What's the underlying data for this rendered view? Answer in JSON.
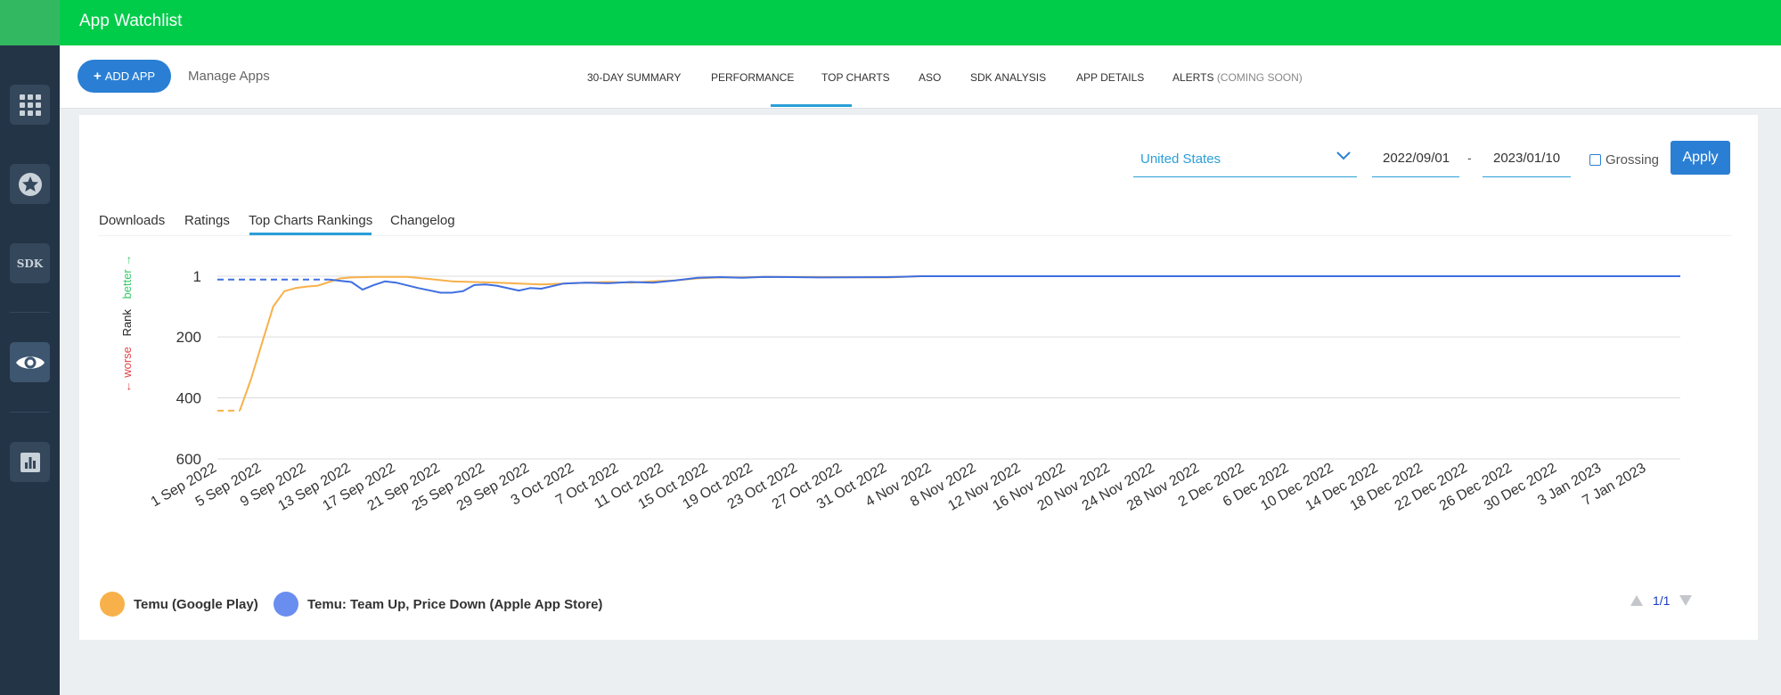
{
  "app": {
    "title": "App Watchlist"
  },
  "sidebar": {
    "items": [
      {
        "name": "apps-grid",
        "icon": "grid-icon"
      },
      {
        "name": "favorites",
        "icon": "star-icon"
      },
      {
        "name": "sdk",
        "label": "SDK"
      },
      {
        "name": "watchlist",
        "icon": "eye-icon"
      },
      {
        "name": "reports",
        "icon": "bar-chart-icon"
      }
    ]
  },
  "toolbar": {
    "add_app_label": "ADD APP",
    "manage_apps_label": "Manage Apps",
    "tabs": [
      {
        "label": "30-DAY SUMMARY"
      },
      {
        "label": "PERFORMANCE",
        "active": true
      },
      {
        "label": "TOP CHARTS"
      },
      {
        "label": "ASO"
      },
      {
        "label": "SDK ANALYSIS"
      },
      {
        "label": "APP DETAILS"
      },
      {
        "label": "ALERTS",
        "suffix": "(COMING SOON)"
      }
    ]
  },
  "filters": {
    "country": "United States",
    "date_from": "2022/09/01",
    "date_separator": "-",
    "date_to": "2023/01/10",
    "grossing_label": "Grossing",
    "grossing_checked": false,
    "apply_label": "Apply"
  },
  "data_tabs": [
    {
      "label": "Downloads"
    },
    {
      "label": "Ratings"
    },
    {
      "label": "Top Charts Rankings",
      "active": true
    },
    {
      "label": "Changelog"
    }
  ],
  "chart_data": {
    "type": "line",
    "ylabel": {
      "worse": "← worse",
      "rank": "Rank",
      "better": "better →"
    },
    "y_inverted": true,
    "ylim": [
      1,
      600
    ],
    "y_ticks": [
      1,
      200,
      400,
      600
    ],
    "x_ticks": [
      "1 Sep 2022",
      "5 Sep 2022",
      "9 Sep 2022",
      "13 Sep 2022",
      "17 Sep 2022",
      "21 Sep 2022",
      "25 Sep 2022",
      "29 Sep 2022",
      "3 Oct 2022",
      "7 Oct 2022",
      "11 Oct 2022",
      "15 Oct 2022",
      "19 Oct 2022",
      "23 Oct 2022",
      "27 Oct 2022",
      "31 Oct 2022",
      "4 Nov 2022",
      "8 Nov 2022",
      "12 Nov 2022",
      "16 Nov 2022",
      "20 Nov 2022",
      "24 Nov 2022",
      "28 Nov 2022",
      "2 Dec 2022",
      "6 Dec 2022",
      "10 Dec 2022",
      "14 Dec 2022",
      "18 Dec 2022",
      "22 Dec 2022",
      "26 Dec 2022",
      "30 Dec 2022",
      "3 Jan 2023",
      "7 Jan 2023"
    ],
    "grid": true,
    "series": [
      {
        "name": "Temu (Google Play)",
        "color": "#f8b14a",
        "dashed_until": "2022-09-03",
        "points": [
          [
            "2022-09-01",
            442
          ],
          [
            "2022-09-03",
            442
          ],
          [
            "2022-09-04",
            340
          ],
          [
            "2022-09-05",
            220
          ],
          [
            "2022-09-06",
            100
          ],
          [
            "2022-09-07",
            50
          ],
          [
            "2022-09-08",
            40
          ],
          [
            "2022-09-09",
            35
          ],
          [
            "2022-09-10",
            32
          ],
          [
            "2022-09-11",
            20
          ],
          [
            "2022-09-12",
            8
          ],
          [
            "2022-09-13",
            5
          ],
          [
            "2022-09-15",
            3
          ],
          [
            "2022-09-18",
            3
          ],
          [
            "2022-09-20",
            10
          ],
          [
            "2022-09-22",
            18
          ],
          [
            "2022-09-24",
            20
          ],
          [
            "2022-09-26",
            22
          ],
          [
            "2022-09-28",
            25
          ],
          [
            "2022-09-30",
            28
          ],
          [
            "2022-10-02",
            25
          ],
          [
            "2022-10-04",
            22
          ],
          [
            "2022-10-06",
            20
          ],
          [
            "2022-10-08",
            22
          ],
          [
            "2022-10-10",
            18
          ],
          [
            "2022-10-12",
            15
          ],
          [
            "2022-10-14",
            8
          ],
          [
            "2022-10-16",
            5
          ],
          [
            "2022-10-18",
            5
          ],
          [
            "2022-10-20",
            3
          ],
          [
            "2022-10-25",
            4
          ],
          [
            "2022-10-31",
            5
          ],
          [
            "2022-11-03",
            1
          ],
          [
            "2023-01-10",
            1
          ]
        ]
      },
      {
        "name": "Temu: Team Up, Price Down (Apple App Store)",
        "color": "#3f6fe0",
        "dashed_until": "2022-09-11",
        "points": [
          [
            "2022-09-01",
            12
          ],
          [
            "2022-09-11",
            12
          ],
          [
            "2022-09-13",
            20
          ],
          [
            "2022-09-14",
            45
          ],
          [
            "2022-09-15",
            30
          ],
          [
            "2022-09-16",
            18
          ],
          [
            "2022-09-17",
            22
          ],
          [
            "2022-09-19",
            40
          ],
          [
            "2022-09-21",
            55
          ],
          [
            "2022-09-22",
            55
          ],
          [
            "2022-09-23",
            50
          ],
          [
            "2022-09-24",
            30
          ],
          [
            "2022-09-25",
            28
          ],
          [
            "2022-09-26",
            32
          ],
          [
            "2022-09-28",
            48
          ],
          [
            "2022-09-29",
            40
          ],
          [
            "2022-09-30",
            42
          ],
          [
            "2022-10-02",
            25
          ],
          [
            "2022-10-04",
            22
          ],
          [
            "2022-10-06",
            24
          ],
          [
            "2022-10-08",
            20
          ],
          [
            "2022-10-10",
            22
          ],
          [
            "2022-10-12",
            15
          ],
          [
            "2022-10-14",
            6
          ],
          [
            "2022-10-16",
            4
          ],
          [
            "2022-10-18",
            6
          ],
          [
            "2022-10-20",
            3
          ],
          [
            "2022-10-25",
            5
          ],
          [
            "2022-10-31",
            4
          ],
          [
            "2022-11-03",
            1
          ],
          [
            "2023-01-10",
            1
          ]
        ]
      }
    ],
    "legend_position": "bottom-left"
  },
  "legend": {
    "items": [
      {
        "label": "Temu (Google Play)",
        "color": "#f8b14a"
      },
      {
        "label": "Temu: Team Up, Price Down (Apple App Store)",
        "color": "#6a8df0"
      }
    ],
    "pager": "1/1"
  }
}
